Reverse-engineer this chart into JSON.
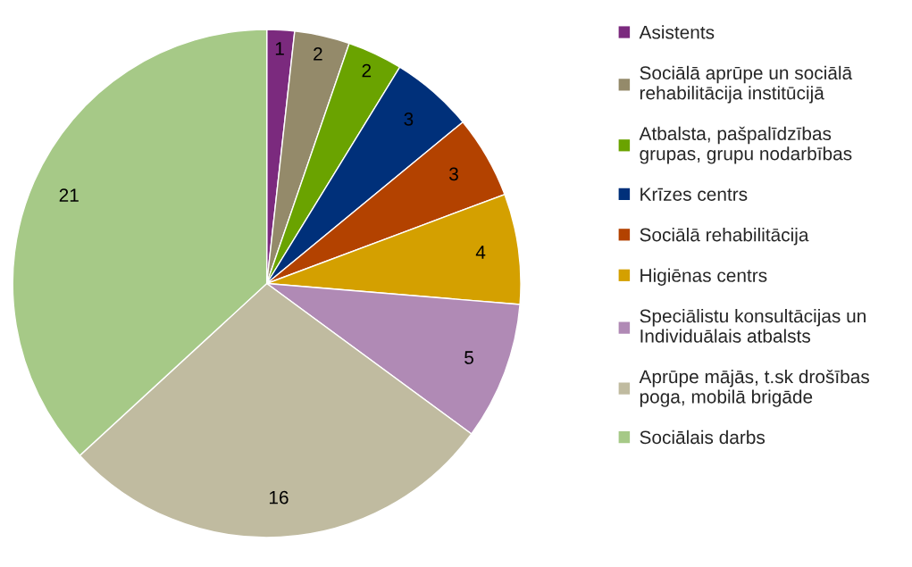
{
  "chart_data": {
    "type": "pie",
    "categories": [
      "Asistents",
      "Sociālā aprūpe un sociālā\nrehabilitācija institūcijā",
      "Atbalsta, pašpalīdzības\ngrupas, grupu nodarbības",
      "Krīzes centrs",
      "Sociālā rehabilitācija",
      "Higiēnas centrs",
      "Speciālistu konsultācijas un\nIndividuālais atbalsts",
      "Aprūpe mājās, t.sk drošības\npoga, mobilā brigāde",
      "Sociālais darbs"
    ],
    "values": [
      1,
      2,
      2,
      3,
      3,
      4,
      5,
      16,
      21
    ],
    "colors": [
      "#7b2a7e",
      "#948a6a",
      "#6aa300",
      "#00307a",
      "#b34200",
      "#d4a000",
      "#b08ab5",
      "#c0bba0",
      "#a6c987"
    ],
    "data_labels": true,
    "legend": "right"
  }
}
